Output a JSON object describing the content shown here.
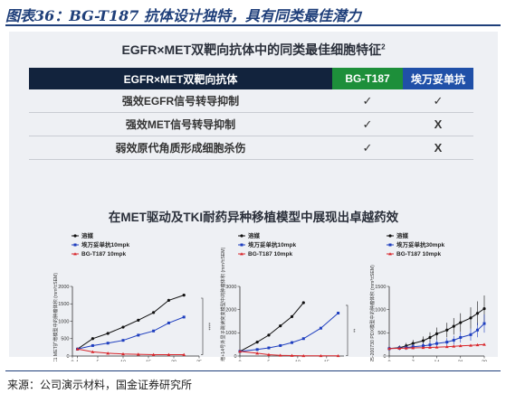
{
  "header": {
    "title": "图表36：BG-T187 抗体设计独特，具有同类最佳潜力"
  },
  "panel": {
    "title": "EGFR×MET双靶向抗体中的同类最佳细胞特征",
    "title_sup": "2",
    "table": {
      "headers": [
        "EGFR×MET双靶向抗体",
        "BG-T187",
        "埃万妥单抗"
      ],
      "rows": [
        {
          "feature": "强效EGFR信号转导抑制",
          "bg": "✓",
          "ami": "✓"
        },
        {
          "feature": "强效MET信号转导抑制",
          "bg": "✓",
          "ami": "X"
        },
        {
          "feature": "弱效原代角质形成细胞杀伤",
          "bg": "✓",
          "ami": "X"
        }
      ]
    },
    "subtitle": "在MET驱动及TKI耐药异种移植模型中展现出卓越药效"
  },
  "legend_labels": {
    "vehicle": "溶媒",
    "ami": "埃万妥单抗10mpk",
    "ami30": "埃万妥单抗30mpk",
    "bg": "BG-T187 10mpk"
  },
  "colors": {
    "vehicle": "#111111",
    "ami": "#1f3fbf",
    "bg": "#d8262b",
    "header_navy": "#12233d",
    "green": "#1d8f3a",
    "blue": "#2050a8"
  },
  "chart_data": [
    {
      "type": "line",
      "ylabel": "EBC1 MET扩增模型中的肿瘤体积 (mm³±SEM)",
      "xlabel": "给药天数",
      "xticks": [
        "0",
        "1",
        "5",
        "10",
        "15",
        "20",
        "25"
      ],
      "yticks": [
        "0",
        "500",
        "1000",
        "1500",
        "2000"
      ],
      "xlim": [
        0,
        25
      ],
      "ylim": [
        0,
        2000
      ],
      "annotation": "****",
      "series": [
        {
          "name": "溶媒",
          "x": [
            1,
            4,
            7,
            10,
            13,
            16,
            19,
            22
          ],
          "y": [
            200,
            500,
            650,
            830,
            1030,
            1250,
            1600,
            1750
          ]
        },
        {
          "name": "埃万妥单抗10mpk",
          "x": [
            1,
            4,
            7,
            10,
            13,
            16,
            19,
            22
          ],
          "y": [
            200,
            300,
            370,
            450,
            600,
            720,
            950,
            1120
          ]
        },
        {
          "name": "BG-T187 10mpk",
          "x": [
            1,
            4,
            7,
            10,
            13,
            16,
            19,
            22
          ],
          "y": [
            200,
            120,
            80,
            60,
            50,
            40,
            40,
            40
          ]
        }
      ]
    },
    {
      "type": "line",
      "ylabel": "Hs-746T MET扩增+14号外显子跳读突变模型中的肿瘤体积 (mm³±SEM)",
      "xlabel": "给药天数",
      "xticks": [
        "0",
        "5",
        "10",
        "15"
      ],
      "yticks": [
        "0",
        "1000",
        "2000",
        "3000"
      ],
      "xlim": [
        0,
        18
      ],
      "ylim": [
        0,
        3000
      ],
      "annotation": "**",
      "series": [
        {
          "name": "溶媒",
          "x": [
            0,
            3,
            5,
            7,
            9,
            11
          ],
          "y": [
            200,
            600,
            900,
            1300,
            1700,
            2300
          ]
        },
        {
          "name": "埃万妥单抗10mpk",
          "x": [
            0,
            3,
            5,
            7,
            9,
            11,
            14,
            17
          ],
          "y": [
            200,
            280,
            350,
            450,
            580,
            750,
            1200,
            1850
          ]
        },
        {
          "name": "BG-T187 10mpk",
          "x": [
            0,
            3,
            5,
            7,
            9,
            11,
            14,
            17
          ],
          "y": [
            200,
            120,
            60,
            30,
            20,
            10,
            10,
            10
          ]
        }
      ]
    },
    {
      "type": "line",
      "ylabel": "LD1-0025-200730 PDX模型中的肿瘤体积 (mm³±SEM)",
      "xlabel": "给药天数",
      "xticks": [
        "0",
        "7",
        "14",
        "21",
        "28"
      ],
      "yticks": [
        "0",
        "500",
        "1000",
        "1500"
      ],
      "xlim": [
        0,
        28
      ],
      "ylim": [
        0,
        1500
      ],
      "series": [
        {
          "name": "溶媒",
          "x": [
            0,
            3,
            5,
            7,
            10,
            12,
            14,
            17,
            19,
            21,
            24,
            26,
            28
          ],
          "y": [
            160,
            180,
            220,
            270,
            330,
            400,
            480,
            560,
            640,
            720,
            820,
            920,
            1020
          ]
        },
        {
          "name": "埃万妥单抗30mpk",
          "x": [
            0,
            3,
            5,
            7,
            10,
            12,
            14,
            17,
            19,
            21,
            24,
            26,
            28
          ],
          "y": [
            160,
            170,
            180,
            200,
            220,
            240,
            270,
            300,
            340,
            400,
            460,
            560,
            700
          ]
        },
        {
          "name": "BG-T187 10mpk",
          "x": [
            0,
            3,
            5,
            7,
            10,
            12,
            14,
            17,
            19,
            21,
            24,
            26,
            28
          ],
          "y": [
            160,
            165,
            170,
            175,
            180,
            185,
            190,
            200,
            210,
            220,
            230,
            240,
            250
          ]
        }
      ]
    }
  ],
  "source": "来源：公司演示材料，国金证券研究所"
}
